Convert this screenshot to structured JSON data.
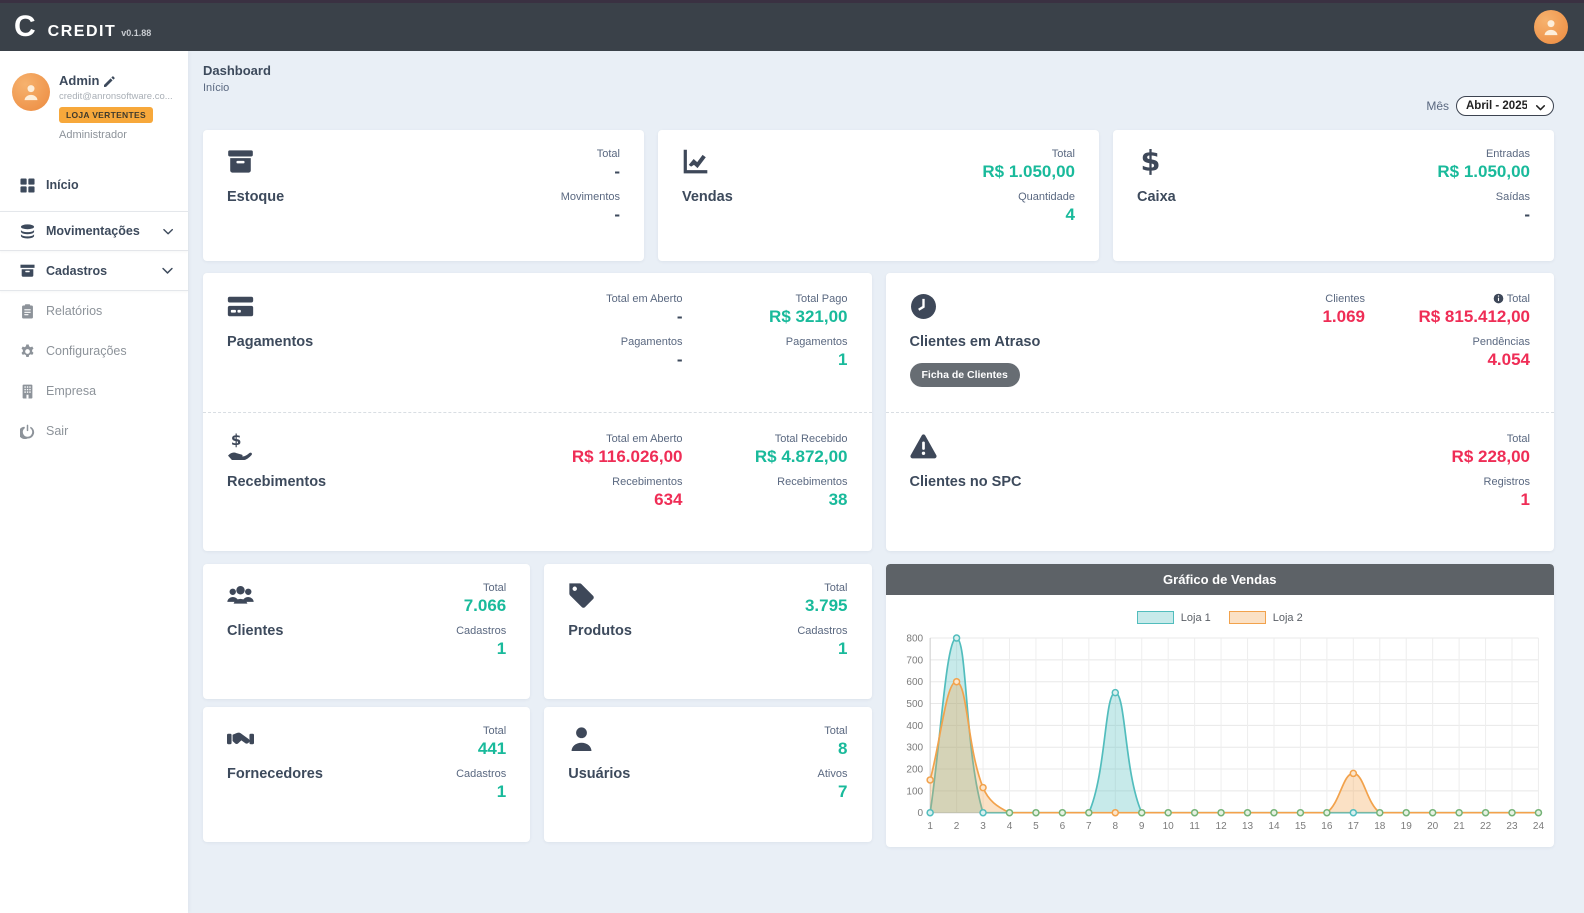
{
  "colors": {
    "teal": "#19ba9b",
    "red": "#ef2d56",
    "badge_orange": "#f7a83b",
    "navbar": "#3a4149",
    "chart_header": "#5d6267"
  },
  "navbar": {
    "logo_letter": "C",
    "app_name": "CREDIT",
    "version": "v0.1.88"
  },
  "sidebar": {
    "user": {
      "name": "Admin",
      "email": "credit@anronsoftware.co...",
      "store_badge": "LOJA VERTENTES",
      "role": "Administrador"
    },
    "items": [
      {
        "label": "Início"
      },
      {
        "label": "Movimentações"
      },
      {
        "label": "Cadastros"
      },
      {
        "label": "Relatórios"
      },
      {
        "label": "Configurações"
      },
      {
        "label": "Empresa"
      },
      {
        "label": "Sair"
      }
    ]
  },
  "header": {
    "title": "Dashboard",
    "breadcrumb": "Início",
    "month_label": "Mês",
    "month_value": "Abril - 2025"
  },
  "cards": {
    "estoque": {
      "title": "Estoque",
      "s1_label": "Total",
      "s1_value": "-",
      "s2_label": "Movimentos",
      "s2_value": "-"
    },
    "vendas": {
      "title": "Vendas",
      "s1_label": "Total",
      "s1_value": "R$ 1.050,00",
      "s2_label": "Quantidade",
      "s2_value": "4"
    },
    "caixa": {
      "title": "Caixa",
      "s1_label": "Entradas",
      "s1_value": "R$ 1.050,00",
      "s2_label": "Saídas",
      "s2_value": "-"
    },
    "pagamentos": {
      "title": "Pagamentos",
      "open_label": "Total em Aberto",
      "open_value": "-",
      "open_count_label": "Pagamentos",
      "open_count_value": "-",
      "paid_label": "Total Pago",
      "paid_value": "R$ 321,00",
      "paid_count_label": "Pagamentos",
      "paid_count_value": "1"
    },
    "recebimentos": {
      "title": "Recebimentos",
      "open_label": "Total em Aberto",
      "open_value": "R$ 116.026,00",
      "open_count_label": "Recebimentos",
      "open_count_value": "634",
      "recv_label": "Total Recebido",
      "recv_value": "R$ 4.872,00",
      "recv_count_label": "Recebimentos",
      "recv_count_value": "38"
    },
    "atraso": {
      "title": "Clientes em Atraso",
      "button": "Ficha de Clientes",
      "clientes_label": "Clientes",
      "clientes_value": "1.069",
      "total_label": "Total",
      "total_value": "R$ 815.412,00",
      "pend_label": "Pendências",
      "pend_value": "4.054"
    },
    "spc": {
      "title": "Clientes no SPC",
      "total_label": "Total",
      "total_value": "R$ 228,00",
      "reg_label": "Registros",
      "reg_value": "1"
    },
    "clientes": {
      "title": "Clientes",
      "s1_label": "Total",
      "s1_value": "7.066",
      "s2_label": "Cadastros",
      "s2_value": "1"
    },
    "produtos": {
      "title": "Produtos",
      "s1_label": "Total",
      "s1_value": "3.795",
      "s2_label": "Cadastros",
      "s2_value": "1"
    },
    "fornecedores": {
      "title": "Fornecedores",
      "s1_label": "Total",
      "s1_value": "441",
      "s2_label": "Cadastros",
      "s2_value": "1"
    },
    "usuarios": {
      "title": "Usuários",
      "s1_label": "Total",
      "s1_value": "8",
      "s2_label": "Ativos",
      "s2_value": "7"
    }
  },
  "chart_data": {
    "type": "area",
    "title": "Gráfico de Vendas",
    "x": [
      1,
      2,
      3,
      4,
      5,
      6,
      7,
      8,
      9,
      10,
      11,
      12,
      13,
      14,
      15,
      16,
      17,
      18,
      19,
      20,
      21,
      22,
      23,
      24
    ],
    "xlabel": "",
    "ylabel": "",
    "ylim": [
      0,
      800
    ],
    "ytick_step": 100,
    "grid": true,
    "legend_position": "top",
    "series": [
      {
        "name": "Loja 1",
        "color": "#52bdbd",
        "fill": "rgba(82,189,189,0.32)",
        "marker_fill": "#d9f0ef",
        "values": [
          0,
          800,
          0,
          0,
          0,
          0,
          0,
          550,
          0,
          0,
          0,
          0,
          0,
          0,
          0,
          0,
          0,
          0,
          0,
          0,
          0,
          0,
          0,
          0
        ]
      },
      {
        "name": "Loja 2",
        "color": "#f2a24c",
        "fill": "rgba(242,162,76,0.32)",
        "marker_fill": "#fce6cc",
        "values": [
          150,
          600,
          115,
          0,
          0,
          0,
          0,
          0,
          0,
          0,
          0,
          0,
          0,
          0,
          0,
          0,
          180,
          0,
          0,
          0,
          0,
          0,
          0,
          0
        ]
      }
    ]
  }
}
